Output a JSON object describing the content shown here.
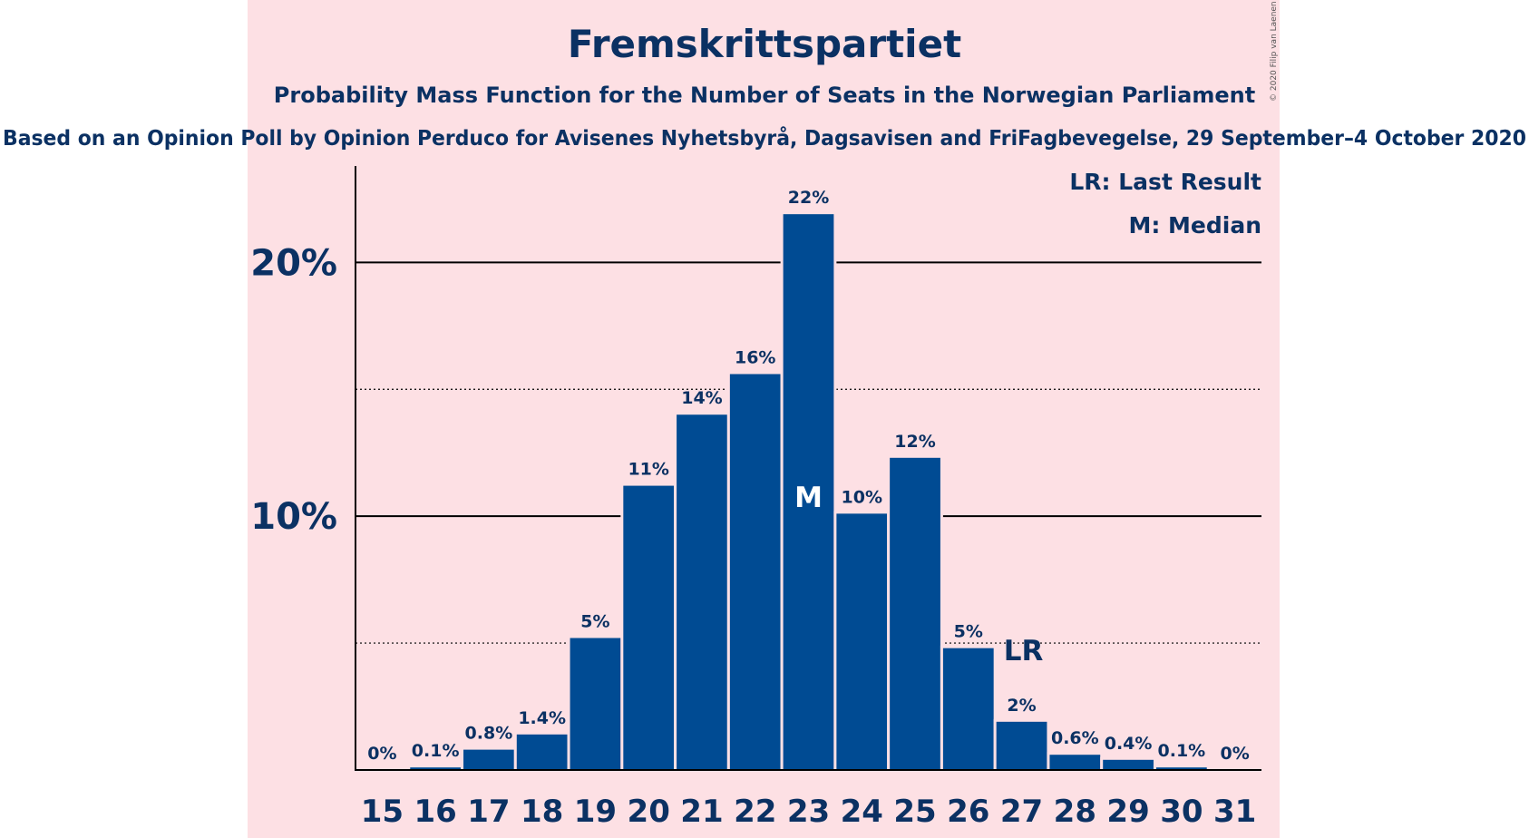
{
  "chart_data": {
    "type": "bar",
    "title": "Fremskrittspartiet",
    "subtitle": "Probability Mass Function for the Number of Seats in the Norwegian Parliament",
    "subsubtitle": "Based on an Opinion Poll by Opinion Perduco for Avisenes Nyhetsbyrå, Dagsavisen and FriFagbevegelse, 29 September–4 October 2020",
    "categories": [
      "15",
      "16",
      "17",
      "18",
      "19",
      "20",
      "21",
      "22",
      "23",
      "24",
      "25",
      "26",
      "27",
      "28",
      "29",
      "30",
      "31"
    ],
    "values": [
      0,
      0.1,
      0.8,
      1.4,
      5.2,
      11.2,
      14.0,
      15.6,
      21.9,
      10.1,
      12.3,
      4.8,
      1.9,
      0.6,
      0.4,
      0.1,
      0
    ],
    "value_labels": [
      "0%",
      "0.1%",
      "0.8%",
      "1.4%",
      "5%",
      "11%",
      "14%",
      "16%",
      "22%",
      "10%",
      "12%",
      "5%",
      "2%",
      "0.6%",
      "0.4%",
      "0.1%",
      "0%"
    ],
    "ylim": [
      0,
      23.8
    ],
    "y_ticks": [
      {
        "value": 10,
        "label": "10%"
      },
      {
        "value": 20,
        "label": "20%"
      }
    ],
    "dotted_lines": [
      5,
      15
    ],
    "median_category": "23",
    "median_label": "M",
    "last_result_category": "27",
    "last_result_label": "LR",
    "legend": [
      "LR: Last Result",
      "M: Median"
    ],
    "copyright": "© 2020 Filip van Laenen",
    "colors": {
      "bar": "#004b93",
      "background_panel": "#fde0e4",
      "text": "#0b3163",
      "median_text": "#ffffff"
    }
  }
}
